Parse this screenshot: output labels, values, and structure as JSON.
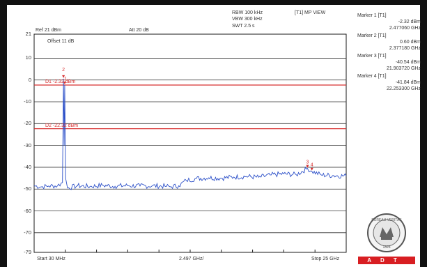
{
  "header": {
    "rbw": "RBW 100 kHz",
    "vbw": "VBW 300 kHz",
    "swt": "SWT 2.5 s",
    "mode": "[T1] MP VIEW",
    "ref": "Ref 21 dBm",
    "att": "Att  20 dB",
    "offset": "Offset 11 dB"
  },
  "markers": [
    {
      "label": "Marker 1 [T1]",
      "level": "-2.32 dBm",
      "freq": "2.477060 GHz",
      "id": "1",
      "x_ghz": 2.477,
      "y_dbm": -2.32
    },
    {
      "label": "Marker 2 [T1]",
      "level": "0.60 dBm",
      "freq": "2.377180 GHz",
      "id": "2",
      "x_ghz": 2.377,
      "y_dbm": 0.6
    },
    {
      "label": "Marker 3 [T1]",
      "level": "-40.54 dBm",
      "freq": "21.903720 GHz",
      "id": "3",
      "x_ghz": 21.904,
      "y_dbm": -40.54
    },
    {
      "label": "Marker 4 [T1]",
      "level": "-41.84 dBm",
      "freq": "22.253300 GHz",
      "id": "4",
      "x_ghz": 22.253,
      "y_dbm": -41.84
    }
  ],
  "logo": {
    "seal_text": "BUREAU VERITAS",
    "seal_year": "1828",
    "company": "ADT"
  },
  "colors": {
    "trace": "#2b4fc8",
    "limit": "#d83030",
    "grid": "#333333",
    "frame": "#1a1a1a"
  },
  "chart_data": {
    "type": "line",
    "title": "",
    "xlabel": "",
    "ylabel": "",
    "x_start_label": "Start 30 MHz",
    "x_center_label": "2.497 GHz/",
    "x_stop_label": "Stop 25 GHz",
    "xlim": [
      0.03,
      25
    ],
    "ylim": [
      -79,
      21
    ],
    "ytick_labels": [
      "21",
      "10",
      "0",
      "-10",
      "-20",
      "-30",
      "-40",
      "-50",
      "-60",
      "-70",
      "-79"
    ],
    "ytick_values": [
      21,
      10,
      0,
      -10,
      -20,
      -30,
      -40,
      -50,
      -60,
      -70,
      -79
    ],
    "lines": [
      {
        "name": "D1",
        "label": "D1 -2.32 dBm",
        "y": -2.32
      },
      {
        "name": "D2",
        "label": "D2 -22.32 dBm",
        "y": -22.32
      }
    ],
    "series": [
      {
        "points": [
          [
            0.03,
            -48.5
          ],
          [
            0.6,
            -49.0
          ],
          [
            1.2,
            -48.6
          ],
          [
            1.9,
            -48.5
          ],
          [
            2.3,
            -47.0
          ],
          [
            2.377,
            0.6
          ],
          [
            2.43,
            -30.0
          ],
          [
            2.477,
            -2.32
          ],
          [
            2.55,
            -45.0
          ],
          [
            2.7,
            -49.5
          ],
          [
            3.5,
            -48.5
          ],
          [
            4.5,
            -48.8
          ],
          [
            5.5,
            -48.3
          ],
          [
            6.5,
            -48.7
          ],
          [
            7.5,
            -48.4
          ],
          [
            8.5,
            -48.6
          ],
          [
            9.5,
            -48.5
          ],
          [
            10.5,
            -48.7
          ],
          [
            11.0,
            -48.9
          ],
          [
            11.6,
            -48.5
          ],
          [
            12.2,
            -46.0
          ],
          [
            13.0,
            -45.2
          ],
          [
            14.0,
            -44.8
          ],
          [
            15.0,
            -45.0
          ],
          [
            16.0,
            -44.5
          ],
          [
            17.0,
            -44.2
          ],
          [
            18.0,
            -44.6
          ],
          [
            19.0,
            -43.5
          ],
          [
            20.0,
            -43.0
          ],
          [
            21.0,
            -43.4
          ],
          [
            21.904,
            -40.54
          ],
          [
            22.253,
            -41.84
          ],
          [
            23.0,
            -43.5
          ],
          [
            24.0,
            -43.8
          ],
          [
            25.0,
            -44.0
          ]
        ]
      }
    ]
  }
}
